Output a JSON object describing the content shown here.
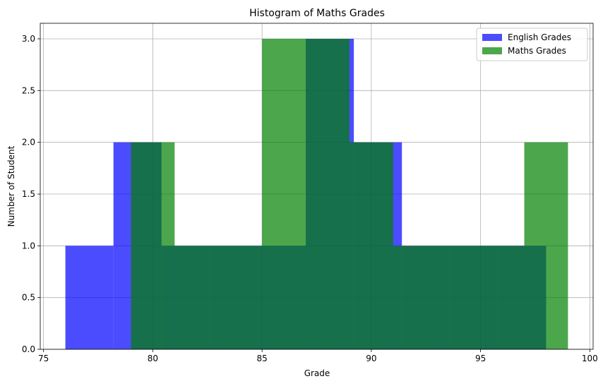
{
  "chart_data": {
    "type": "histogram",
    "title": "Histogram of Maths Grades",
    "xlabel": "Grade",
    "ylabel": "Number of Student",
    "xlim": [
      74.85,
      100.15
    ],
    "ylim": [
      0,
      3.15
    ],
    "xticks": [
      75,
      80,
      85,
      90,
      95,
      100
    ],
    "xtick_labels": [
      "75",
      "80",
      "85",
      "90",
      "95",
      "100"
    ],
    "yticks": [
      0,
      0.5,
      1,
      1.5,
      2,
      2.5,
      3
    ],
    "ytick_labels": [
      "0.0",
      "0.5",
      "1.0",
      "1.5",
      "2.0",
      "2.5",
      "3.0"
    ],
    "grid": true,
    "legend_position": "top-right",
    "series": [
      {
        "name": "English Grades",
        "color": "#0000ff",
        "alpha": 0.7,
        "bin_edges": [
          76,
          78.2,
          80.4,
          82.6,
          84.8,
          87,
          89.2,
          91.4,
          93.6,
          95.8,
          98
        ],
        "counts": [
          1,
          2,
          1,
          1,
          1,
          3,
          2,
          1,
          1,
          1
        ]
      },
      {
        "name": "Maths Grades",
        "color": "#008000",
        "alpha": 0.7,
        "bin_edges": [
          79,
          81,
          83,
          85,
          87,
          89,
          91,
          93,
          95,
          97,
          99
        ],
        "counts": [
          2,
          1,
          1,
          3,
          3,
          2,
          1,
          1,
          1,
          2
        ]
      }
    ]
  }
}
